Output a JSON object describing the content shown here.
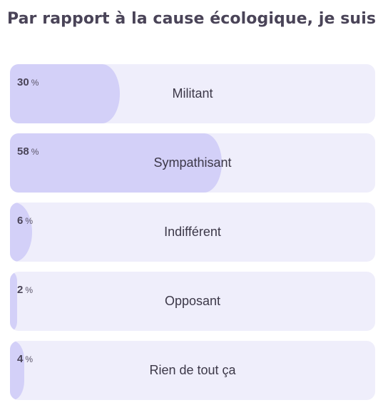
{
  "poll": {
    "title": "Par rapport à la cause écologique, je suis",
    "percent_unit": "%",
    "options": [
      {
        "label": "Militant",
        "percent": "30",
        "share": 0.3
      },
      {
        "label": "Sympathisant",
        "percent": "58",
        "share": 0.58
      },
      {
        "label": "Indifférent",
        "percent": "6",
        "share": 0.06
      },
      {
        "label": "Opposant",
        "percent": "2",
        "share": 0.02
      },
      {
        "label": "Rien de tout ça",
        "percent": "4",
        "share": 0.04
      }
    ]
  },
  "colors": {
    "track": "#efeefb",
    "fill": "#d3d0f8",
    "text": "#3c3848",
    "title": "#4a4458"
  }
}
